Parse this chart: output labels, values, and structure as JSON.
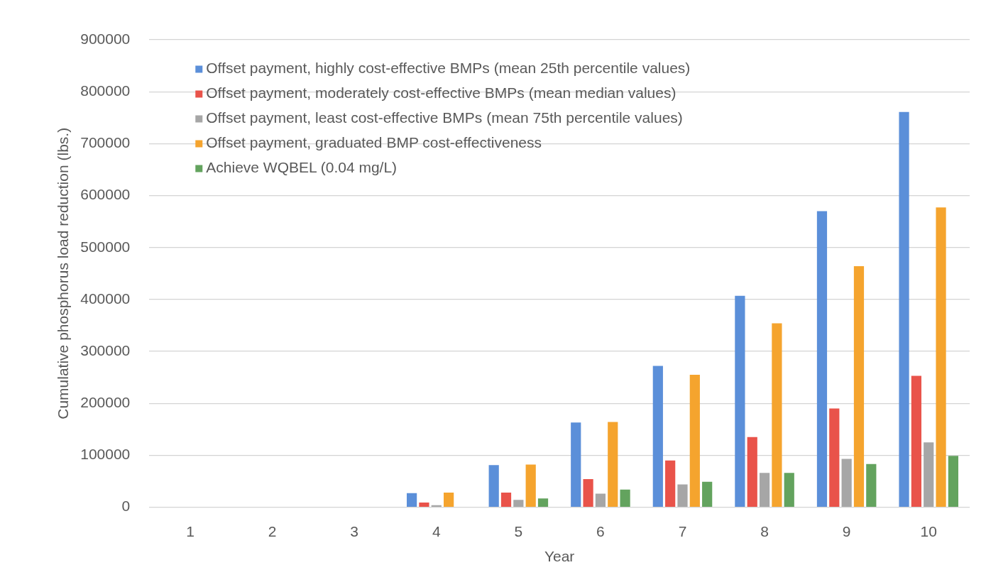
{
  "chart_data": {
    "type": "bar",
    "xlabel": "Year",
    "ylabel": "Cumulative phosphorus load reduction (lbs.)",
    "categories": [
      "1",
      "2",
      "3",
      "4",
      "5",
      "6",
      "7",
      "8",
      "9",
      "10"
    ],
    "series": [
      {
        "name": "Offset payment, highly cost-effective BMPs (mean 25th percentile values)",
        "color": "#5b8fd9",
        "values": [
          0,
          0,
          0,
          27000,
          81000,
          163000,
          272000,
          407000,
          570000,
          761000
        ]
      },
      {
        "name": "Offset payment, moderately cost-effective BMPs (mean median values)",
        "color": "#e9534a",
        "values": [
          0,
          0,
          0,
          9000,
          28000,
          54000,
          90000,
          135000,
          190000,
          253000
        ]
      },
      {
        "name": "Offset payment, least cost-effective BMPs (mean 75th percentile values)",
        "color": "#a6a6a6",
        "values": [
          0,
          0,
          0,
          4000,
          14000,
          26000,
          44000,
          66000,
          93000,
          125000
        ]
      },
      {
        "name": "Offset payment, graduated BMP cost-effectiveness",
        "color": "#f5a42e",
        "values": [
          0,
          0,
          0,
          28000,
          82000,
          164000,
          255000,
          354000,
          464000,
          577000
        ]
      },
      {
        "name": "Achieve WQBEL (0.04 mg/L)",
        "color": "#63a35e",
        "values": [
          0,
          0,
          0,
          0,
          17000,
          34000,
          49000,
          66000,
          83000,
          99000
        ]
      }
    ],
    "ylim": [
      0,
      900000
    ],
    "yticks": [
      0,
      100000,
      200000,
      300000,
      400000,
      500000,
      600000,
      700000,
      800000,
      900000
    ],
    "grid": "y",
    "legend": "top left"
  }
}
